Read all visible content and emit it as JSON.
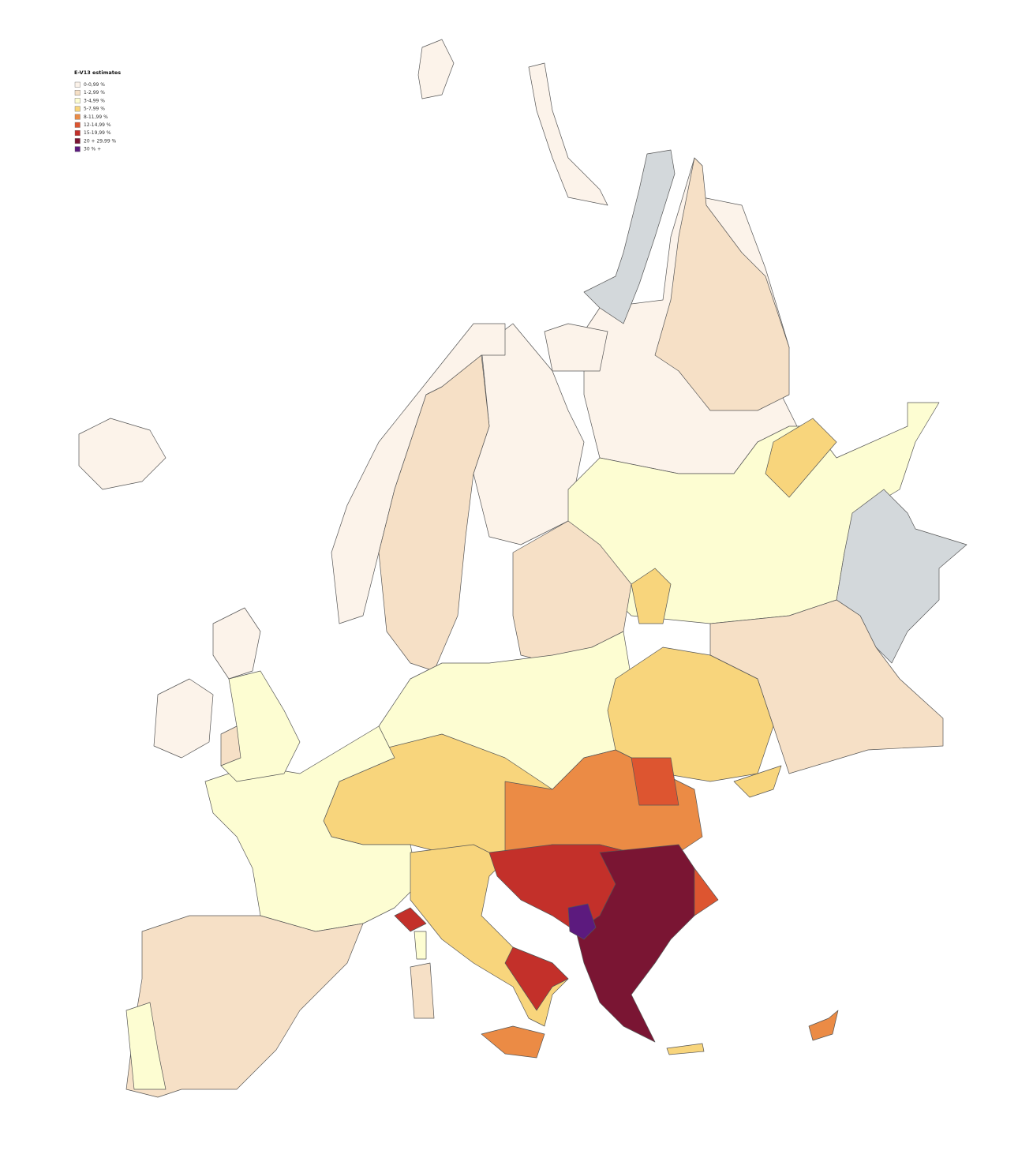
{
  "legend": {
    "title": "E-V13 estimates",
    "items": [
      {
        "label": "0-0,99 %",
        "color": "#fcf3ea"
      },
      {
        "label": "1-2,99 %",
        "color": "#f6e0c6"
      },
      {
        "label": "3-4,99 %",
        "color": "#fdfdd2"
      },
      {
        "label": "5-7,99 %",
        "color": "#f8d57c"
      },
      {
        "label": "8-11,99 %",
        "color": "#eb8b45"
      },
      {
        "label": "12-14,99 %",
        "color": "#dd5530"
      },
      {
        "label": "15-19,99 %",
        "color": "#c3302a"
      },
      {
        "label": "20 + 29,99 %",
        "color": "#7a1533"
      },
      {
        "label": "30 % +",
        "color": "#5c1a7e"
      }
    ]
  }
}
